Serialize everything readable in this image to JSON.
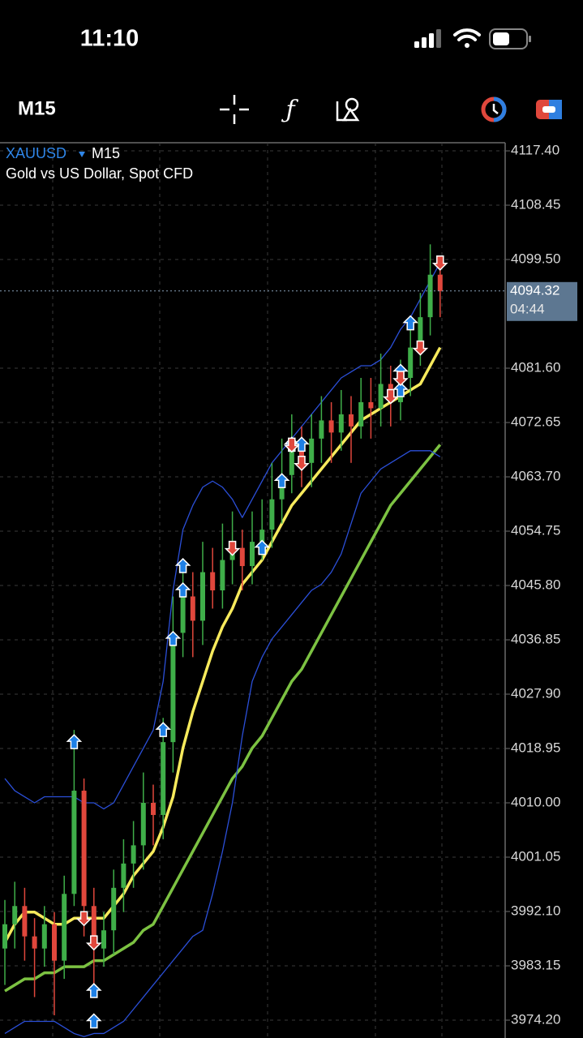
{
  "status_bar": {
    "time": "11:10"
  },
  "toolbar": {
    "timeframe": "M15"
  },
  "chart_data": {
    "type": "candlestick",
    "symbol": "XAUUSD",
    "timeframe": "M15",
    "description": "Gold vs US Dollar, Spot CFD",
    "categories": [
      null,
      null,
      null,
      null,
      null,
      null,
      null,
      null,
      null,
      null,
      null,
      null,
      null,
      null,
      null,
      null,
      null,
      null,
      null,
      null,
      null,
      null,
      null,
      null,
      null,
      null,
      null,
      null,
      null,
      null,
      null,
      null,
      null,
      null,
      null,
      null,
      null,
      null,
      null,
      null,
      null,
      null,
      null,
      null,
      null
    ],
    "open": [
      3986,
      3990,
      3993,
      3988,
      3986,
      3990,
      3984,
      3995,
      4012,
      3993,
      3986,
      3989,
      3996,
      4000,
      4003,
      4010,
      4008,
      4020,
      4038,
      4044,
      4040,
      4048,
      4045,
      4050,
      4052,
      4049,
      4053,
      4055,
      4060,
      4064,
      4068,
      4066,
      4070,
      4073,
      4071,
      4074,
      4072,
      4076,
      4075,
      4079,
      4076,
      4080,
      4085,
      4090,
      4097
    ],
    "high": [
      3994,
      3997,
      3996,
      3991,
      3993,
      3992,
      3998,
      4022,
      4014,
      3996,
      3992,
      3999,
      4004,
      4007,
      4015,
      4013,
      4024,
      4044,
      4050,
      4048,
      4053,
      4052,
      4056,
      4058,
      4055,
      4058,
      4060,
      4066,
      4070,
      4074,
      4072,
      4074,
      4077,
      4076,
      4078,
      4077,
      4080,
      4080,
      4084,
      4082,
      4083,
      4089,
      4094,
      4102,
      4100
    ],
    "low": [
      3980,
      3986,
      3984,
      3978,
      3983,
      3975,
      3981,
      3993,
      3988,
      3979,
      3983,
      3985,
      3992,
      3996,
      3999,
      4003,
      4004,
      4015,
      4034,
      4034,
      4036,
      4042,
      4042,
      4046,
      4045,
      4046,
      4050,
      4052,
      4056,
      4061,
      4062,
      4062,
      4066,
      4066,
      4068,
      4066,
      4070,
      4070,
      4072,
      4072,
      4073,
      4077,
      4082,
      4087,
      4090
    ],
    "close": [
      3990,
      3993,
      3988,
      3986,
      3990,
      3984,
      3995,
      4012,
      3993,
      3986,
      3989,
      3996,
      4000,
      4003,
      4010,
      4008,
      4020,
      4038,
      4044,
      4040,
      4048,
      4045,
      4050,
      4052,
      4049,
      4053,
      4055,
      4060,
      4064,
      4068,
      4066,
      4070,
      4073,
      4071,
      4074,
      4072,
      4076,
      4075,
      4079,
      4076,
      4080,
      4085,
      4090,
      4097,
      4094.32
    ],
    "colors": {
      "up": "#3fae49",
      "down": "#e0473c"
    },
    "series": [
      {
        "color": "#f7ea5c",
        "values": [
          3987,
          3990,
          3992,
          3992,
          3991,
          3990,
          3990,
          3991,
          3991,
          3991,
          3991,
          3993,
          3995,
          3998,
          4000,
          4002,
          4006,
          4011,
          4019,
          4025,
          4030,
          4035,
          4039,
          4042,
          4046,
          4048,
          4050,
          4053,
          4056,
          4059,
          4061,
          4063,
          4065,
          4067,
          4069,
          4071,
          4073,
          4074,
          4075,
          4076,
          4077,
          4078,
          4079,
          4082,
          4085
        ]
      },
      {
        "color": "#7cc242",
        "values": [
          3979,
          3980,
          3981,
          3981,
          3982,
          3982,
          3983,
          3983,
          3983,
          3984,
          3984,
          3985,
          3986,
          3987,
          3989,
          3990,
          3993,
          3996,
          3999,
          4002,
          4005,
          4008,
          4011,
          4014,
          4016,
          4019,
          4021,
          4024,
          4027,
          4030,
          4032,
          4035,
          4038,
          4041,
          4044,
          4047,
          4050,
          4053,
          4056,
          4059,
          4061,
          4063,
          4065,
          4067,
          4069
        ]
      },
      {
        "color": "#2b4fd8",
        "values": [
          4014,
          4012,
          4011,
          4010,
          4011,
          4011,
          4011,
          4011,
          4010,
          4010,
          4009,
          4010,
          4013,
          4016,
          4019,
          4022,
          4030,
          4045,
          4055,
          4059,
          4062,
          4063,
          4062,
          4060,
          4057,
          4060,
          4063,
          4066,
          4068,
          4070,
          4072,
          4074,
          4076,
          4078,
          4080,
          4081,
          4082,
          4082,
          4083,
          4085,
          4088,
          4090,
          4093,
          4096,
          4099
        ]
      },
      {
        "color": "#2b4fd8",
        "values": [
          3972,
          3973,
          3974,
          3974,
          3974,
          3974,
          3973,
          3972,
          3971.5,
          3972,
          3972,
          3973,
          3974,
          3976,
          3978,
          3980,
          3982,
          3984,
          3986,
          3988,
          3989,
          3995,
          4002,
          4010,
          4021,
          4030,
          4034,
          4037,
          4039,
          4041,
          4043,
          4045,
          4046,
          4048,
          4051,
          4056,
          4061,
          4063,
          4065,
          4066,
          4067,
          4068,
          4068,
          4068,
          4067
        ]
      }
    ],
    "markers": [
      {
        "direction": "up",
        "color": "#1e80e6",
        "x": [
          7,
          9,
          9,
          16,
          17,
          18,
          18,
          26,
          28,
          29,
          30,
          40,
          40,
          41
        ],
        "values": [
          4020,
          3974,
          3979,
          4022,
          4037,
          4045,
          4049,
          4052,
          4063,
          4069,
          4069,
          4081,
          4078,
          4089
        ]
      },
      {
        "direction": "down",
        "color": "#e0473c",
        "x": [
          8,
          9,
          23,
          29,
          30,
          39,
          40,
          42,
          44
        ],
        "values": [
          3991,
          3987,
          4052,
          4069,
          4066,
          4077,
          4080,
          4085,
          4099
        ]
      }
    ],
    "current_price": 4094.32,
    "countdown": "04:44",
    "ylim": [
      3971.26,
      4118.74
    ],
    "yticks": [
      {
        "value": 4117.4,
        "label": "4117.40"
      },
      {
        "value": 4108.45,
        "label": "4108.45"
      },
      {
        "value": 4099.5,
        "label": "4099.50"
      },
      {
        "value": 4081.6,
        "label": "4081.60"
      },
      {
        "value": 4072.65,
        "label": "4072.65"
      },
      {
        "value": 4063.7,
        "label": "4063.70"
      },
      {
        "value": 4054.75,
        "label": "4054.75"
      },
      {
        "value": 4045.8,
        "label": "4045.80"
      },
      {
        "value": 4036.85,
        "label": "4036.85"
      },
      {
        "value": 4027.9,
        "label": "4027.90"
      },
      {
        "value": 4018.95,
        "label": "4018.95"
      },
      {
        "value": 4010.0,
        "label": "4010.00"
      },
      {
        "value": 4001.05,
        "label": "4001.05"
      },
      {
        "value": 3992.1,
        "label": "3992.10"
      },
      {
        "value": 3983.15,
        "label": "3983.15"
      },
      {
        "value": 3974.2,
        "label": "3974.20"
      }
    ],
    "grid": true
  }
}
